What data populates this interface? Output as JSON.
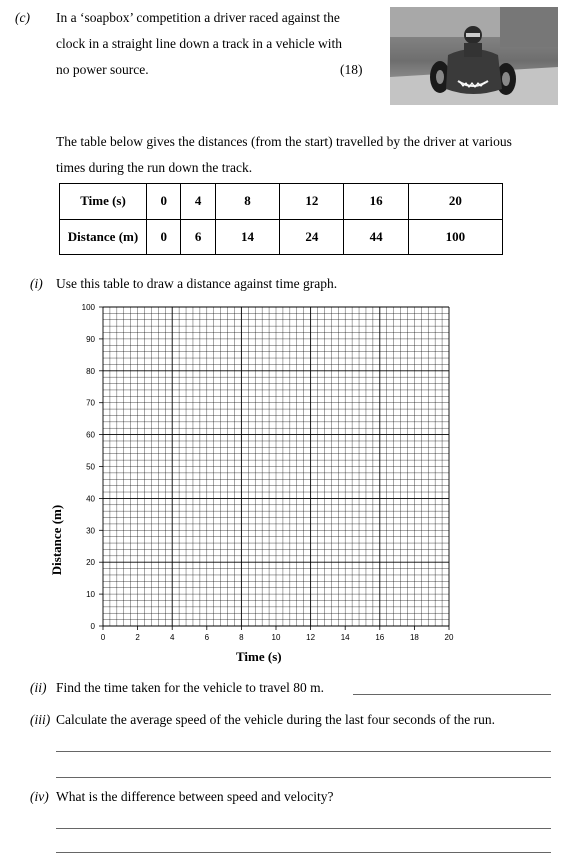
{
  "part_c": {
    "label": "(c)",
    "line1": "In a ‘soapbox’ competition a driver raced against the",
    "line2": "clock in a straight line down a track in a vehicle with",
    "line3": "no power source.",
    "marks": "(18)"
  },
  "table_intro": {
    "line1": "The table below gives the distances (from the start) travelled by the driver at various",
    "line2": "times during the run down the track."
  },
  "table": {
    "time_header": "Time (s)",
    "distance_header": "Distance (m)",
    "times": [
      "0",
      "4",
      "8",
      "12",
      "16",
      "20"
    ],
    "distances": [
      "0",
      "6",
      "14",
      "24",
      "44",
      "100"
    ]
  },
  "q_i": {
    "label": "(i)",
    "text": "Use this table to draw a distance against time graph."
  },
  "chart_data": {
    "type": "scatter",
    "title": "",
    "xlabel": "Time (s)",
    "ylabel": "Distance (m)",
    "xlim": [
      0,
      20
    ],
    "ylim": [
      0,
      100
    ],
    "x_ticks": [
      "0",
      "2",
      "4",
      "6",
      "8",
      "10",
      "12",
      "14",
      "16",
      "18",
      "20"
    ],
    "y_ticks": [
      "0",
      "10",
      "20",
      "30",
      "40",
      "50",
      "60",
      "70",
      "80",
      "90",
      "100"
    ],
    "grid": true,
    "series": []
  },
  "q_ii": {
    "label": "(ii)",
    "text": "Find the time taken for the vehicle to travel 80 m."
  },
  "q_iii": {
    "label": "(iii)",
    "text": "Calculate the average speed of the vehicle during the last four seconds of the run."
  },
  "q_iv": {
    "label": "(iv)",
    "text": "What is the difference between speed and velocity?"
  }
}
